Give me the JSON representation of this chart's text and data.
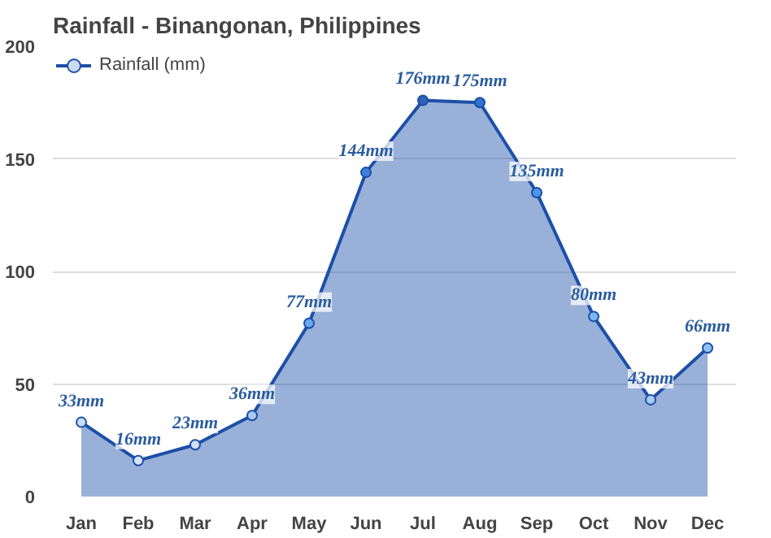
{
  "chart_data": {
    "type": "area",
    "title": "Rainfall - Binangonan, Philippines",
    "categories": [
      "Jan",
      "Feb",
      "Mar",
      "Apr",
      "May",
      "Jun",
      "Jul",
      "Aug",
      "Sep",
      "Oct",
      "Nov",
      "Dec"
    ],
    "series": [
      {
        "name": "Rainfall (mm)",
        "color": "#1c4fa8",
        "values": [
          33,
          16,
          23,
          36,
          77,
          144,
          176,
          175,
          135,
          80,
          43,
          66
        ],
        "colors": [
          "#c9dcf2",
          "#d6e5f6",
          "#cfe0f4",
          "#a9cbf2",
          "#6aa8ee",
          "#3f7fd8",
          "#2f62b8",
          "#3372d0",
          "#4d97ea",
          "#7cb8f2",
          "#a9cdf4",
          "#8fc0f2"
        ],
        "value_labels": [
          "33mm",
          "16mm",
          "23mm",
          "36mm",
          "77mm",
          "144mm",
          "176mm",
          "175mm",
          "135mm",
          "80mm",
          "43mm",
          "66mm"
        ]
      }
    ],
    "ylim": [
      0,
      200
    ],
    "yticks": [
      0,
      50,
      100,
      150,
      200
    ],
    "grid": "y",
    "legend": "top left",
    "marker": "circle",
    "line_style": "solid"
  }
}
